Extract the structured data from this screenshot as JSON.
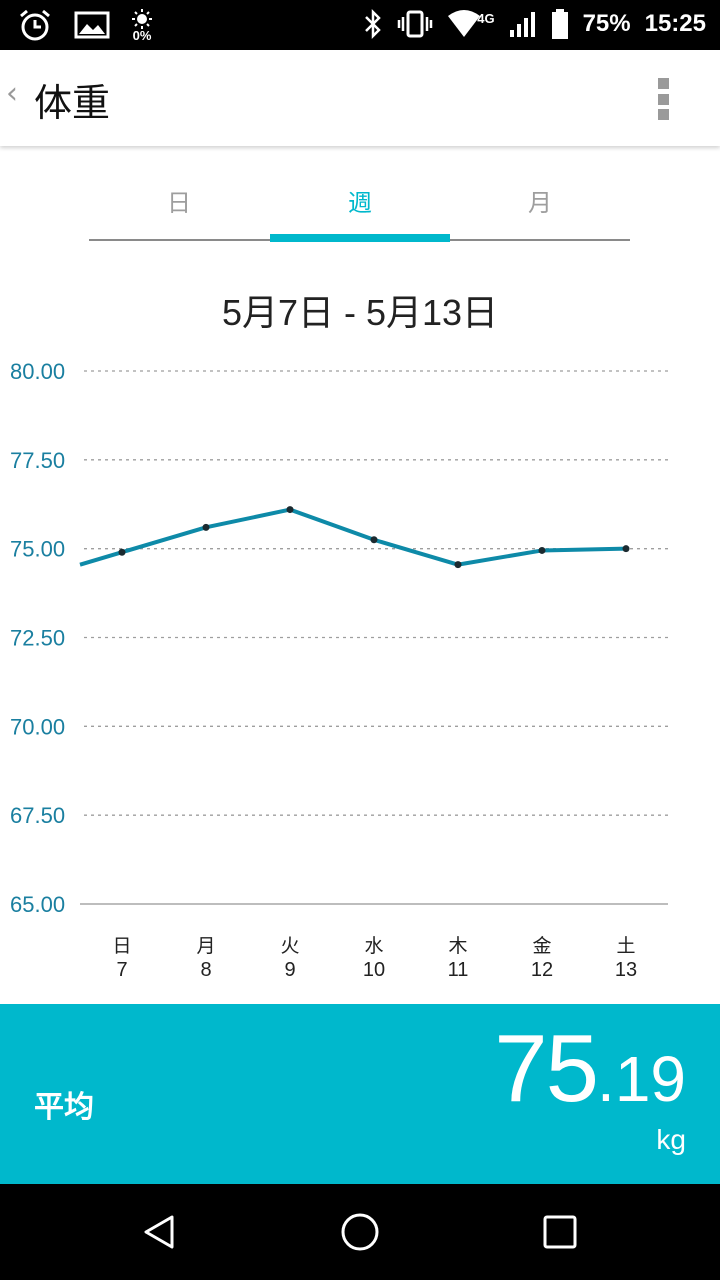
{
  "status_bar": {
    "sun_percent": "0%",
    "network": "4G",
    "battery": "75%",
    "time": "15:25",
    "icons": [
      "alarm-clock-icon",
      "image-icon",
      "brightness-icon",
      "bluetooth-icon",
      "vibrate-icon",
      "wifi-icon",
      "signal-icon",
      "battery-icon"
    ]
  },
  "app_bar": {
    "back": "‹",
    "title": "体重",
    "menu_icon": "more-vert-icon"
  },
  "tabs": [
    {
      "label": "日",
      "active": false
    },
    {
      "label": "週",
      "active": true
    },
    {
      "label": "月",
      "active": false
    }
  ],
  "date_range": "5月7日 - 5月13日",
  "colors": {
    "accent": "#00b8cc",
    "line": "#0e8aa8",
    "axis_label": "#1a7fa0",
    "grid": "#9e9e9e"
  },
  "chart_data": {
    "type": "line",
    "y_ticks": [
      "80.00",
      "77.50",
      "75.00",
      "72.50",
      "70.00",
      "67.50",
      "65.00"
    ],
    "ylim": [
      65,
      80
    ],
    "x_day_labels": [
      "日",
      "月",
      "火",
      "水",
      "木",
      "金",
      "土"
    ],
    "x_date_labels": [
      "7",
      "8",
      "9",
      "10",
      "11",
      "12",
      "13"
    ],
    "values": [
      74.9,
      75.6,
      76.1,
      75.25,
      74.55,
      74.95,
      75.0
    ],
    "lead_in_value": 74.55,
    "grid": "dotted horizontal"
  },
  "average": {
    "label": "平均",
    "integer": "75",
    "decimal": ".19",
    "unit": "kg"
  },
  "nav_bar": {
    "icons": [
      "back-triangle-icon",
      "home-circle-icon",
      "recents-square-icon"
    ]
  }
}
